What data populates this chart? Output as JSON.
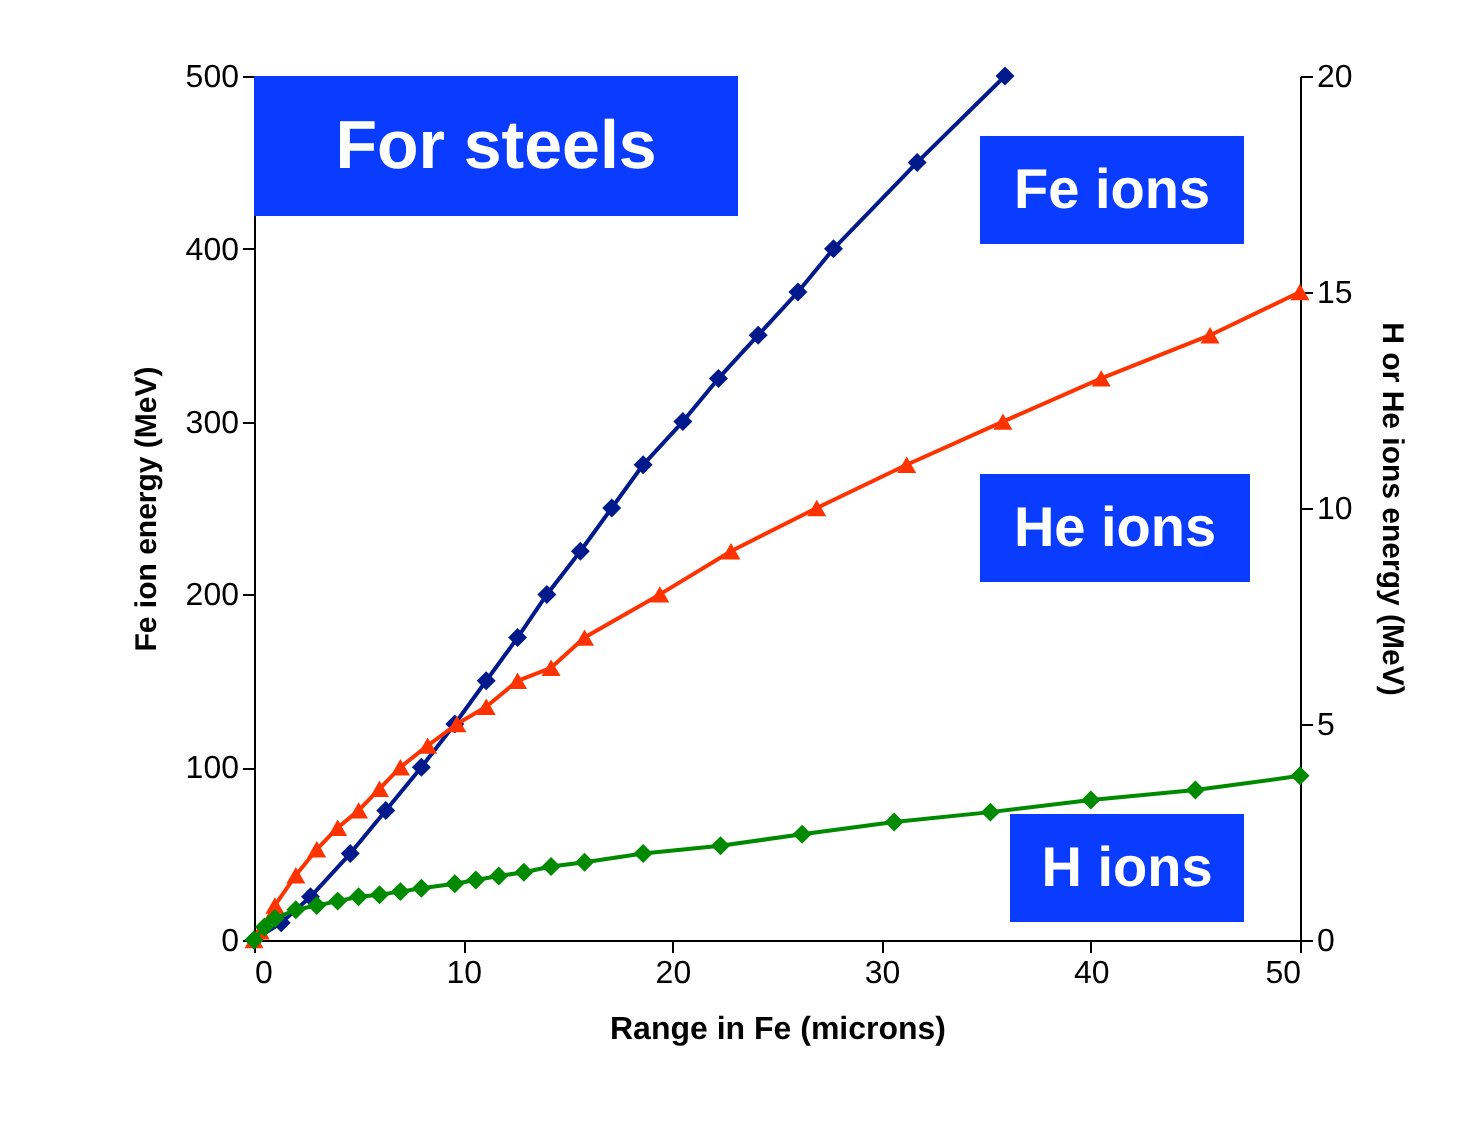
{
  "chart_data": {
    "type": "line",
    "xlabel": "Range in Fe (microns)",
    "ylabel": "Fe ion energy (MeV)",
    "y2label": "H or He ions energy (MeV)",
    "annotations": [
      "For steels"
    ],
    "xlim": [
      0,
      50
    ],
    "xticks": [
      0,
      10,
      20,
      30,
      40,
      50
    ],
    "ylim": [
      0,
      500
    ],
    "yticks": [
      0,
      100,
      200,
      300,
      400,
      500
    ],
    "y2lim": [
      0,
      20
    ],
    "y2ticks": [
      0,
      5,
      10,
      15,
      20
    ],
    "series": [
      {
        "name": "Fe ions",
        "color": "#001a8c",
        "marker": "diamond",
        "x": [
          0,
          1.3,
          2.7,
          4.6,
          6.3,
          8.0,
          9.6,
          11.1,
          12.6,
          14.0,
          15.6,
          17.1,
          18.6,
          20.5,
          22.2,
          24.1,
          26.0,
          27.7,
          31.7,
          35.9
        ],
        "values": [
          0,
          10,
          25,
          50,
          75,
          100,
          125,
          150,
          175,
          200,
          225,
          250,
          275,
          300,
          325,
          350,
          375,
          400,
          450,
          500
        ]
      },
      {
        "name": "He ions",
        "color": "#ff3300",
        "marker": "triangle",
        "axis": "y2",
        "x": [
          0,
          0.3,
          1,
          2,
          3,
          4,
          5,
          6,
          7,
          8.3,
          9.7,
          11.1,
          12.6,
          14.2,
          15.8,
          19.4,
          22.8,
          26.9,
          31.2,
          35.8,
          40.5,
          45.7,
          50
        ],
        "values": [
          0,
          0.2,
          0.8,
          1.5,
          2.1,
          2.6,
          3,
          3.5,
          4,
          4.5,
          5,
          5.4,
          6,
          6.3,
          7,
          8,
          9,
          10,
          11,
          12,
          13,
          14,
          15
        ]
      },
      {
        "name": "H ions",
        "color": "#008a00",
        "marker": "diamond",
        "axis": "y2",
        "x": [
          0,
          0.5,
          1,
          2,
          3,
          4,
          5,
          6,
          7,
          8,
          9.6,
          10.6,
          11.7,
          12.9,
          14.2,
          15.8,
          18.6,
          22.3,
          26.2,
          30.6,
          35.2,
          40.0,
          45.0,
          50
        ],
        "values": [
          0,
          0.3,
          0.5,
          0.7,
          0.8,
          0.9,
          1.0,
          1.05,
          1.12,
          1.2,
          1.3,
          1.39,
          1.48,
          1.57,
          1.7,
          1.8,
          2.0,
          2.18,
          2.45,
          2.73,
          2.96,
          3.24,
          3.47,
          3.8
        ]
      }
    ]
  }
}
